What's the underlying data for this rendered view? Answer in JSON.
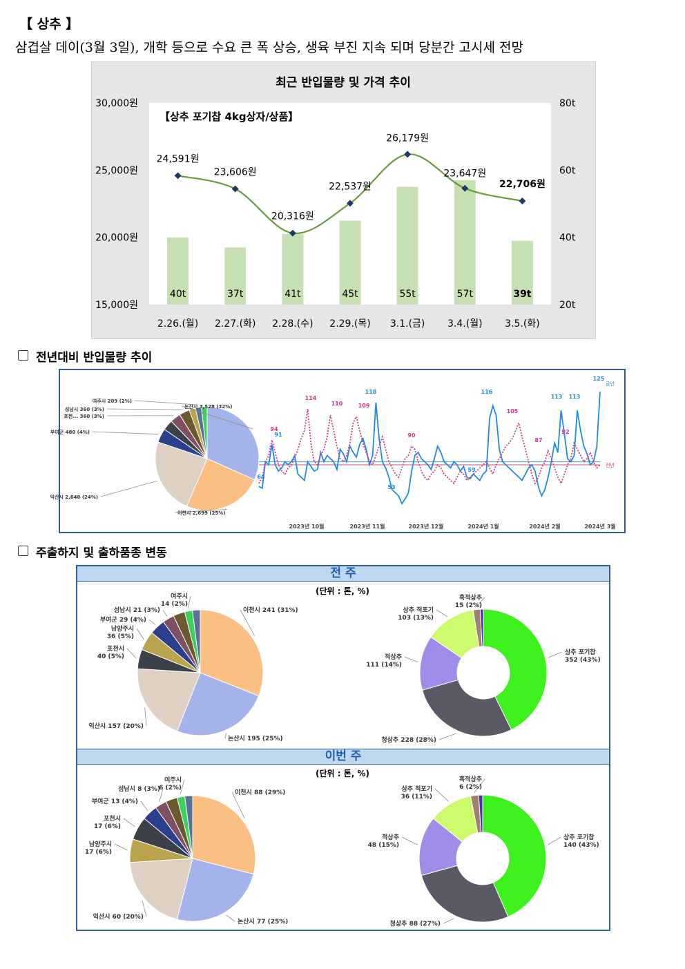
{
  "heading": "【 상추 】",
  "subheading": "삼겹살 데이(3월 3일), 개학 등으로 수요 큰 폭 상승, 생육 부진 지속 되며 당분간 고시세 전망",
  "section2_title": "전년대비 반입물량 추이",
  "section3_title": "주출하지 및 출하품종 변동",
  "chart_data": [
    {
      "type": "bar+line",
      "title": "최근 반입물량 및 가격 추이",
      "subtitle": "【상추 포기찹 4kg상자/상품】",
      "categories": [
        "2.26.(월)",
        "2.27.(화)",
        "2.28.(수)",
        "2.29.(목)",
        "3.1.(금)",
        "3.4.(월)",
        "3.5.(화)"
      ],
      "left_axis": {
        "ticks": [
          "15,000원",
          "20,000원",
          "25,000원",
          "30,000원"
        ],
        "range": [
          15000,
          30000
        ]
      },
      "right_axis": {
        "ticks": [
          "20t",
          "40t",
          "60t",
          "80t"
        ],
        "range": [
          20,
          80
        ]
      },
      "series": [
        {
          "name": "",
          "type": "bar",
          "axis": "right",
          "values": [
            40,
            37,
            41,
            45,
            55,
            57,
            39
          ],
          "labels": [
            "40t",
            "37t",
            "41t",
            "45t",
            "55t",
            "57t",
            "39t"
          ]
        },
        {
          "name": "",
          "type": "line",
          "axis": "left",
          "values": [
            24591,
            23606,
            20316,
            22537,
            26179,
            23647,
            22706
          ],
          "labels": [
            "24,591원",
            "23,606원",
            "20,316원",
            "22,537원",
            "26,179원",
            "23,647원",
            "22,706원"
          ]
        }
      ],
      "colors": {
        "bar": "#c6e0b4",
        "line": "#6a9a3a",
        "marker": "#1f3864"
      }
    },
    {
      "type": "pie",
      "slices": [
        {
          "label": "논산시 3,528 (32%)",
          "value": 32,
          "color": "#a4b4ea"
        },
        {
          "label": "이천시 2,699 (25%)",
          "value": 25,
          "color": "#fbbe83"
        },
        {
          "label": "익산시 2,640 (24%)",
          "value": 24,
          "color": "#ded1c3"
        },
        {
          "label": "부여군 480 (4%)",
          "value": 4.4,
          "color": "#2c3f8c"
        },
        {
          "label": "",
          "value": 3.3,
          "color": "#3c4048"
        },
        {
          "label": "포천... 360 (3%)",
          "value": 3.3,
          "color": "#7f4f63"
        },
        {
          "label": "성남시 360 (3%)",
          "value": 3.3,
          "color": "#6b5932"
        },
        {
          "label": "",
          "value": 2.0,
          "color": "#b9a34c"
        },
        {
          "label": "여주시 209 (2%)",
          "value": 1.9,
          "color": "#5c6f96"
        },
        {
          "label": "",
          "value": 1.8,
          "color": "#3fcf5f"
        }
      ]
    },
    {
      "type": "line",
      "x_ticks": [
        "2023년 10월",
        "2023년 11월",
        "2023년 12월",
        "2024년 1월",
        "2024년 2월",
        "2024년 3월"
      ],
      "legend": [
        "금년",
        "전년"
      ],
      "series": [
        {
          "name": "금년",
          "color": "#1e88e5",
          "style": "solid",
          "values": [
            64,
            63,
            80,
            78,
            91,
            78,
            74,
            76,
            80,
            78,
            80,
            84,
            72,
            70,
            68,
            80,
            77,
            74,
            75,
            86,
            80,
            84,
            82,
            80,
            75,
            88,
            85,
            80,
            90,
            86,
            83,
            91,
            95,
            88,
            78,
            84,
            118,
            95,
            80,
            76,
            70,
            62,
            60,
            58,
            53,
            56,
            60,
            74,
            84,
            86,
            82,
            80,
            78,
            75,
            82,
            90,
            86,
            80,
            78,
            76,
            80,
            78,
            74,
            77,
            70,
            69,
            72,
            70,
            68,
            72,
            74,
            108,
            116,
            110,
            88,
            80,
            78,
            76,
            74,
            72,
            70,
            68,
            72,
            76,
            78,
            74,
            64,
            58,
            62,
            70,
            80,
            92,
            86,
            113,
            98,
            82,
            80,
            84,
            113,
            100,
            90,
            85,
            78,
            80,
            90,
            125
          ]
        },
        {
          "name": "전년",
          "color": "#d63384",
          "style": "dotted",
          "values": [
            66,
            70,
            80,
            84,
            94,
            86,
            78,
            74,
            72,
            76,
            78,
            82,
            88,
            95,
            100,
            114,
            92,
            80,
            78,
            84,
            88,
            96,
            110,
            100,
            90,
            82,
            80,
            84,
            92,
            105,
            109,
            100,
            92,
            86,
            80,
            78,
            84,
            90,
            96,
            88,
            80,
            76,
            72,
            70,
            76,
            82,
            84,
            90,
            88,
            80,
            74,
            70,
            68,
            72,
            74,
            78,
            76,
            72,
            70,
            68,
            66,
            70,
            74,
            72,
            68,
            70,
            72,
            74,
            76,
            78,
            80,
            76,
            72,
            78,
            82,
            86,
            90,
            92,
            95,
            100,
            105,
            96,
            88,
            80,
            72,
            66,
            70,
            76,
            80,
            87,
            82,
            76,
            70,
            66,
            72,
            78,
            82,
            92,
            88,
            84,
            80,
            82,
            86,
            80,
            76,
            78
          ]
        }
      ],
      "annotations": [
        "118",
        "116",
        "113",
        "113",
        "125",
        "114",
        "110",
        "109",
        "105",
        "94",
        "91",
        "90",
        "87",
        "92",
        "64",
        "53",
        "59"
      ],
      "hlines": [
        {
          "value": 80,
          "color": "#5aa8e0"
        },
        {
          "value": 78,
          "color": "#e07080"
        }
      ],
      "ylim": [
        50,
        130
      ]
    },
    {
      "type": "pie",
      "title": "전 주",
      "unit_label": "(단위 : 톤, %)",
      "slices": [
        {
          "label": "이천시 241 (31%)",
          "value": 31,
          "color": "#fbbe83"
        },
        {
          "label": "논산시 195 (25%)",
          "value": 25,
          "color": "#a4b4ea"
        },
        {
          "label": "익산시 157 (20%)",
          "value": 20,
          "color": "#ded1c3"
        },
        {
          "label": "포천시\n40 (5%)",
          "value": 5,
          "color": "#3c4048"
        },
        {
          "label": "남양주시\n36 (5%)",
          "value": 5,
          "color": "#b9a34c"
        },
        {
          "label": "부여군 29 (4%)",
          "value": 4,
          "color": "#2c3f8c"
        },
        {
          "label": "성남시 21 (3%)",
          "value": 3,
          "color": "#7f4f63"
        },
        {
          "label": "",
          "value": 3,
          "color": "#6b5932"
        },
        {
          "label": "여주시\n14 (2%)",
          "value": 2,
          "color": "#3fcf5f"
        },
        {
          "label": "",
          "value": 2,
          "color": "#5c6f96"
        }
      ]
    },
    {
      "type": "donut",
      "title": "전 주",
      "slices": [
        {
          "label": "상추 포기찹\n352 (43%)",
          "value": 43,
          "color": "#3ef01c"
        },
        {
          "label": "청상추 228 (28%)",
          "value": 28,
          "color": "#5a5a66"
        },
        {
          "label": "적상추\n111 (14%)",
          "value": 14,
          "color": "#a08ce8"
        },
        {
          "label": "상추 적포기\n103 (13%)",
          "value": 13,
          "color": "#ccfa6c"
        },
        {
          "label": "흑적상추\n15 (2%)",
          "value": 1.8,
          "color": "#a08070"
        },
        {
          "label": "",
          "value": 0.8,
          "color": "#4a2fb0"
        }
      ]
    },
    {
      "type": "pie",
      "title": "이번 주",
      "unit_label": "(단위 : 톤, %)",
      "slices": [
        {
          "label": "이천시 88 (29%)",
          "value": 29,
          "color": "#fbbe83"
        },
        {
          "label": "논산시 77 (25%)",
          "value": 25,
          "color": "#a4b4ea"
        },
        {
          "label": "익산시 60 (20%)",
          "value": 20,
          "color": "#ded1c3"
        },
        {
          "label": "남양주시\n17 (6%)",
          "value": 6,
          "color": "#b9a34c"
        },
        {
          "label": "포천시\n17 (6%)",
          "value": 6,
          "color": "#3c4048"
        },
        {
          "label": "부여군 13 (4%)",
          "value": 4,
          "color": "#2c3f8c"
        },
        {
          "label": "성남시 8 (3%)",
          "value": 3,
          "color": "#7f4f63"
        },
        {
          "label": "",
          "value": 3,
          "color": "#6b5932"
        },
        {
          "label": "여주시\n6 (2%)",
          "value": 2,
          "color": "#3fcf5f"
        },
        {
          "label": "",
          "value": 2,
          "color": "#5c6f96"
        }
      ]
    },
    {
      "type": "donut",
      "title": "이번 주",
      "slices": [
        {
          "label": "상추 포기찹\n140 (43%)",
          "value": 43,
          "color": "#3ef01c"
        },
        {
          "label": "청상추 88 (27%)",
          "value": 27,
          "color": "#5a5a66"
        },
        {
          "label": "적상추\n48 (15%)",
          "value": 15,
          "color": "#a08ce8"
        },
        {
          "label": "상추 적포기\n36 (11%)",
          "value": 11,
          "color": "#ccfa6c"
        },
        {
          "label": "흑적상추\n6 (2%)",
          "value": 2,
          "color": "#a08070"
        },
        {
          "label": "",
          "value": 1,
          "color": "#4a2fb0"
        }
      ]
    }
  ]
}
